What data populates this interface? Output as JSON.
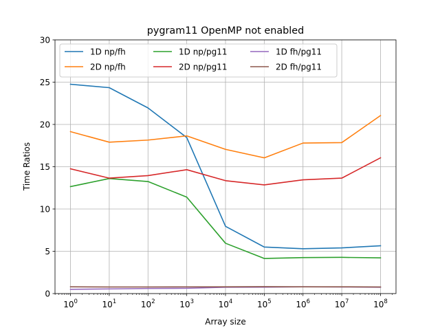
{
  "chart_data": {
    "type": "line",
    "title": "pygram11 OpenMP not enabled",
    "xlabel": "Array size",
    "ylabel": "Time Ratios",
    "x_scale": "log",
    "x": [
      1,
      10,
      100,
      1000,
      10000,
      100000,
      1000000,
      10000000,
      100000000
    ],
    "x_tick_labels": [
      {
        "base": "10",
        "exp": "0"
      },
      {
        "base": "10",
        "exp": "1"
      },
      {
        "base": "10",
        "exp": "2"
      },
      {
        "base": "10",
        "exp": "3"
      },
      {
        "base": "10",
        "exp": "4"
      },
      {
        "base": "10",
        "exp": "5"
      },
      {
        "base": "10",
        "exp": "6"
      },
      {
        "base": "10",
        "exp": "7"
      },
      {
        "base": "10",
        "exp": "8"
      }
    ],
    "ylim": [
      0,
      30
    ],
    "y_ticks": [
      0,
      5,
      10,
      15,
      20,
      25,
      30
    ],
    "y_tick_labels": [
      "0",
      "5",
      "10",
      "15",
      "20",
      "25",
      "30"
    ],
    "grid": true,
    "legend_position": "top",
    "series": [
      {
        "name": "1D np/fh",
        "color": "#1f77b4",
        "values": [
          24.75,
          24.35,
          21.95,
          18.45,
          7.95,
          5.5,
          5.3,
          5.4,
          5.65
        ]
      },
      {
        "name": "2D np/fh",
        "color": "#ff7f0e",
        "values": [
          19.15,
          17.9,
          18.15,
          18.65,
          17.05,
          16.05,
          17.8,
          17.85,
          21.05
        ]
      },
      {
        "name": "1D np/pg11",
        "color": "#2ca02c",
        "values": [
          12.65,
          13.6,
          13.25,
          11.4,
          5.95,
          4.15,
          4.25,
          4.28,
          4.22
        ]
      },
      {
        "name": "2D np/pg11",
        "color": "#d62728",
        "values": [
          14.75,
          13.65,
          13.95,
          14.65,
          13.35,
          12.85,
          13.45,
          13.65,
          16.05
        ]
      },
      {
        "name": "1D fh/pg11",
        "color": "#9467bd",
        "values": [
          0.5,
          0.55,
          0.6,
          0.62,
          0.75,
          0.76,
          0.8,
          0.78,
          0.75
        ]
      },
      {
        "name": "2D fh/pg11",
        "color": "#8c564b",
        "values": [
          0.8,
          0.78,
          0.78,
          0.79,
          0.8,
          0.82,
          0.8,
          0.8,
          0.78
        ]
      }
    ]
  }
}
